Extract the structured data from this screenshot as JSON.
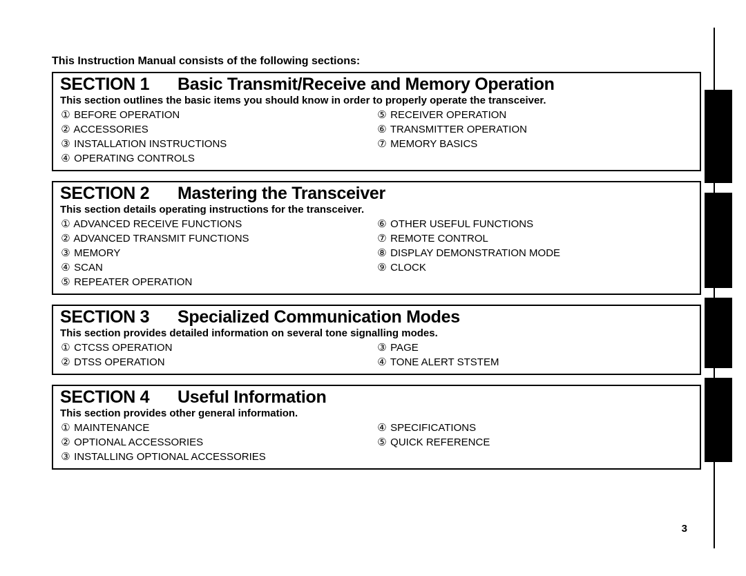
{
  "intro": "This Instruction Manual consists of the following sections:",
  "sections": [
    {
      "num": "SECTION 1",
      "title": "Basic Transmit/Receive and Memory Operation",
      "desc": "This section outlines the basic items you should know in order to properly operate the transceiver.",
      "left": [
        {
          "n": "①",
          "t": "BEFORE OPERATION"
        },
        {
          "n": "②",
          "t": "ACCESSORIES"
        },
        {
          "n": "③",
          "t": "INSTALLATION INSTRUCTIONS"
        },
        {
          "n": "④",
          "t": "OPERATING CONTROLS"
        }
      ],
      "right": [
        {
          "n": "⑤",
          "t": "RECEIVER OPERATION"
        },
        {
          "n": "⑥",
          "t": "TRANSMITTER OPERATION"
        },
        {
          "n": "⑦",
          "t": "MEMORY BASICS"
        }
      ]
    },
    {
      "num": "SECTION 2",
      "title": "Mastering the Transceiver",
      "desc": "This section details operating instructions for the transceiver.",
      "left": [
        {
          "n": "①",
          "t": "ADVANCED RECEIVE FUNCTIONS"
        },
        {
          "n": "②",
          "t": "ADVANCED TRANSMIT FUNCTIONS"
        },
        {
          "n": "③",
          "t": "MEMORY"
        },
        {
          "n": "④",
          "t": "SCAN"
        },
        {
          "n": "⑤",
          "t": "REPEATER OPERATION"
        }
      ],
      "right": [
        {
          "n": "⑥",
          "t": "OTHER USEFUL FUNCTIONS"
        },
        {
          "n": "⑦",
          "t": "REMOTE CONTROL"
        },
        {
          "n": "⑧",
          "t": "DISPLAY DEMONSTRATION MODE"
        },
        {
          "n": "⑨",
          "t": "CLOCK"
        }
      ]
    },
    {
      "num": "SECTION 3",
      "title": "Specialized Communication Modes",
      "desc": "This section provides detailed information on several tone signalling modes.",
      "left": [
        {
          "n": "①",
          "t": "CTCSS OPERATION"
        },
        {
          "n": "②",
          "t": "DTSS OPERATION"
        }
      ],
      "right": [
        {
          "n": "③",
          "t": "PAGE"
        },
        {
          "n": "④",
          "t": "TONE ALERT STSTEM"
        }
      ]
    },
    {
      "num": "SECTION 4",
      "title": "Useful Information",
      "desc": "This section provides other general information.",
      "left": [
        {
          "n": "①",
          "t": "MAINTENANCE"
        },
        {
          "n": "②",
          "t": "OPTIONAL ACCESSORIES"
        },
        {
          "n": "③",
          "t": "INSTALLING OPTIONAL ACCESSORIES"
        }
      ],
      "right": [
        {
          "n": "④",
          "t": "SPECIFICATIONS"
        },
        {
          "n": "⑤",
          "t": "QUICK REFERENCE"
        }
      ]
    }
  ],
  "tabs": [
    135,
    138,
    102,
    122
  ],
  "page_number": "3",
  "colors": {
    "text": "#000000",
    "background": "#ffffff",
    "border": "#000000",
    "tab": "#000000"
  }
}
